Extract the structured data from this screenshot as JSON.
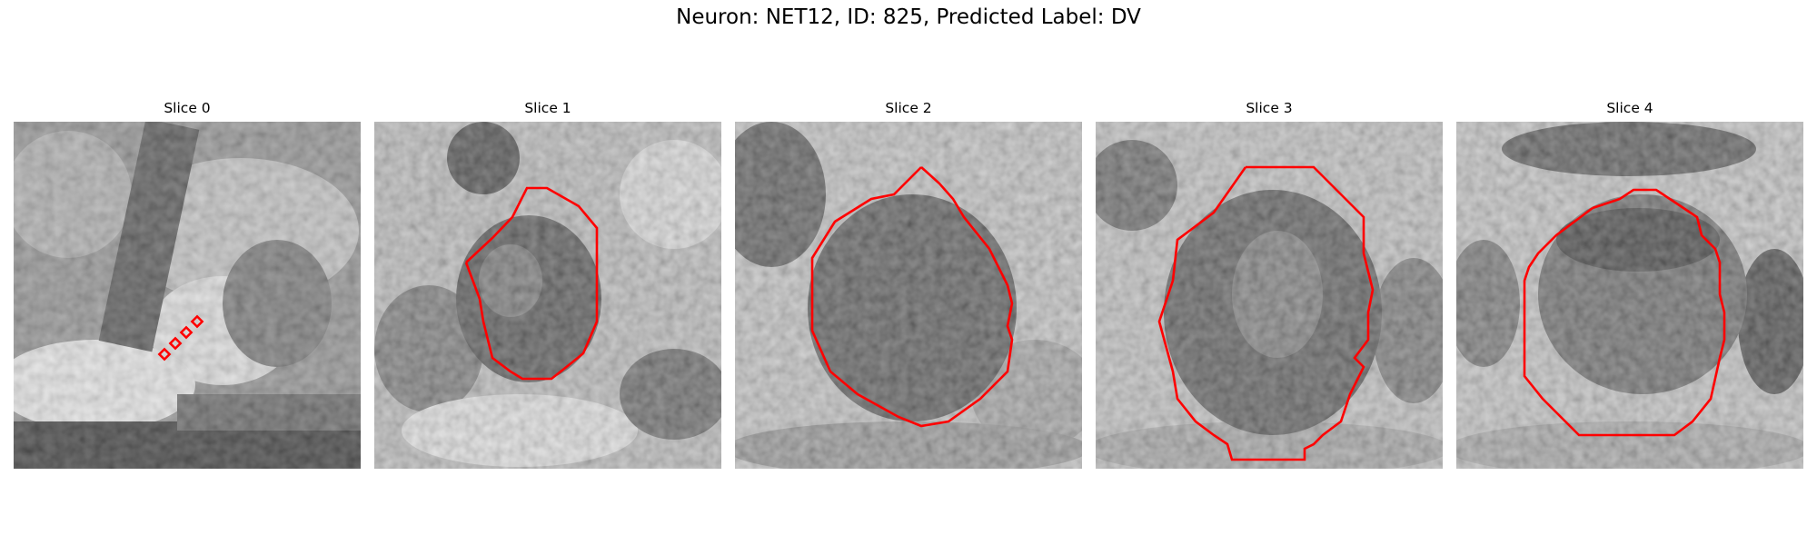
{
  "figure": {
    "title": "Neuron: NET12, ID: 825, Predicted Label: DV"
  },
  "overlay_color": "#ff0000",
  "panels": [
    {
      "title": "Slice 0",
      "overlay": "marker-squares"
    },
    {
      "title": "Slice 1",
      "overlay": "contour"
    },
    {
      "title": "Slice 2",
      "overlay": "contour"
    },
    {
      "title": "Slice 3",
      "overlay": "contour"
    },
    {
      "title": "Slice 4",
      "overlay": "contour"
    }
  ]
}
